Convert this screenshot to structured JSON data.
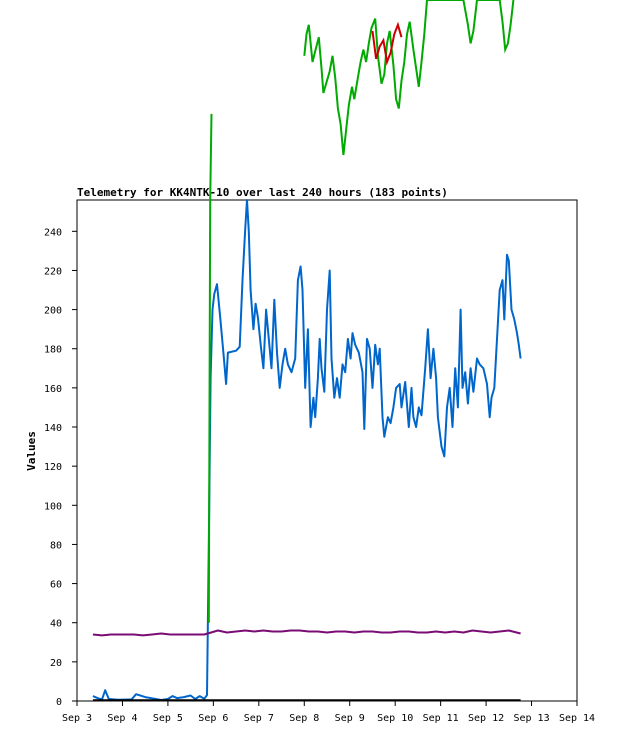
{
  "chart_data": {
    "type": "line",
    "title": "Telemetry for KK4NTK-10 over last 240 hours (183 points)",
    "xlabel": "",
    "ylabel": "Values",
    "ylim": [
      0,
      256
    ],
    "xlim": [
      0,
      11
    ],
    "x_ticks": [
      {
        "pos": 0,
        "label": "Sep 3"
      },
      {
        "pos": 1,
        "label": "Sep 4"
      },
      {
        "pos": 2,
        "label": "Sep 5"
      },
      {
        "pos": 3,
        "label": "Sep 6"
      },
      {
        "pos": 4,
        "label": "Sep 7"
      },
      {
        "pos": 5,
        "label": "Sep 8"
      },
      {
        "pos": 6,
        "label": "Sep 9"
      },
      {
        "pos": 7,
        "label": "Sep 10"
      },
      {
        "pos": 8,
        "label": "Sep 11"
      },
      {
        "pos": 9,
        "label": "Sep 12"
      },
      {
        "pos": 10,
        "label": "Sep 13"
      },
      {
        "pos": 11,
        "label": "Sep 14"
      }
    ],
    "y_ticks": [
      0,
      20,
      40,
      60,
      80,
      100,
      120,
      140,
      160,
      180,
      200,
      220,
      240
    ],
    "grid": false,
    "legend": "none",
    "series": [
      {
        "color": "#0066cc",
        "points": [
          [
            0.35,
            2.5
          ],
          [
            0.45,
            1.5
          ],
          [
            0.55,
            0.8
          ],
          [
            0.62,
            5.5
          ],
          [
            0.7,
            1
          ],
          [
            0.9,
            0.6
          ],
          [
            1.2,
            0.8
          ],
          [
            1.3,
            3.5
          ],
          [
            1.5,
            2
          ],
          [
            1.7,
            1.2
          ],
          [
            1.85,
            0.5
          ],
          [
            2,
            1
          ],
          [
            2.1,
            2.5
          ],
          [
            2.2,
            1.5
          ],
          [
            2.35,
            2
          ],
          [
            2.5,
            2.8
          ],
          [
            2.6,
            1
          ],
          [
            2.7,
            2.5
          ],
          [
            2.8,
            1.2
          ],
          [
            2.86,
            3
          ],
          [
            2.9,
            80
          ],
          [
            2.94,
            165
          ],
          [
            2.98,
            200
          ],
          [
            3.02,
            208
          ],
          [
            3.08,
            213
          ],
          [
            3.15,
            196
          ],
          [
            3.22,
            178
          ],
          [
            3.28,
            162
          ],
          [
            3.32,
            178
          ],
          [
            3.5,
            179
          ],
          [
            3.58,
            181
          ],
          [
            3.64,
            215
          ],
          [
            3.7,
            241
          ],
          [
            3.74,
            256
          ],
          [
            3.78,
            240
          ],
          [
            3.82,
            210
          ],
          [
            3.88,
            190
          ],
          [
            3.93,
            203
          ],
          [
            3.98,
            196
          ],
          [
            4.05,
            180
          ],
          [
            4.1,
            170
          ],
          [
            4.16,
            200
          ],
          [
            4.22,
            185
          ],
          [
            4.28,
            170
          ],
          [
            4.34,
            205
          ],
          [
            4.4,
            178
          ],
          [
            4.46,
            160
          ],
          [
            4.52,
            172
          ],
          [
            4.58,
            180
          ],
          [
            4.64,
            172
          ],
          [
            4.72,
            168
          ],
          [
            4.8,
            175
          ],
          [
            4.86,
            215
          ],
          [
            4.92,
            222
          ],
          [
            4.96,
            210
          ],
          [
            5.02,
            160
          ],
          [
            5.08,
            190
          ],
          [
            5.14,
            140
          ],
          [
            5.2,
            155
          ],
          [
            5.24,
            145
          ],
          [
            5.3,
            165
          ],
          [
            5.34,
            185
          ],
          [
            5.38,
            170
          ],
          [
            5.44,
            158
          ],
          [
            5.5,
            200
          ],
          [
            5.56,
            220
          ],
          [
            5.6,
            175
          ],
          [
            5.66,
            155
          ],
          [
            5.72,
            165
          ],
          [
            5.78,
            155
          ],
          [
            5.84,
            172
          ],
          [
            5.9,
            168
          ],
          [
            5.96,
            185
          ],
          [
            6.02,
            175
          ],
          [
            6.06,
            188
          ],
          [
            6.12,
            182
          ],
          [
            6.2,
            178
          ],
          [
            6.28,
            168
          ],
          [
            6.32,
            139
          ],
          [
            6.38,
            185
          ],
          [
            6.44,
            180
          ],
          [
            6.5,
            160
          ],
          [
            6.56,
            182
          ],
          [
            6.62,
            172
          ],
          [
            6.66,
            180
          ],
          [
            6.72,
            145
          ],
          [
            6.76,
            135
          ],
          [
            6.84,
            145
          ],
          [
            6.9,
            142
          ],
          [
            6.96,
            150
          ],
          [
            7.02,
            160
          ],
          [
            7.1,
            162
          ],
          [
            7.14,
            150
          ],
          [
            7.22,
            163
          ],
          [
            7.3,
            140
          ],
          [
            7.36,
            160
          ],
          [
            7.4,
            145
          ],
          [
            7.46,
            140
          ],
          [
            7.52,
            150
          ],
          [
            7.58,
            146
          ],
          [
            7.66,
            170
          ],
          [
            7.72,
            190
          ],
          [
            7.78,
            165
          ],
          [
            7.84,
            180
          ],
          [
            7.9,
            165
          ],
          [
            7.94,
            145
          ],
          [
            8.02,
            130
          ],
          [
            8.08,
            125
          ],
          [
            8.14,
            150
          ],
          [
            8.2,
            160
          ],
          [
            8.26,
            140
          ],
          [
            8.32,
            170
          ],
          [
            8.38,
            150
          ],
          [
            8.44,
            200
          ],
          [
            8.48,
            160
          ],
          [
            8.54,
            168
          ],
          [
            8.6,
            152
          ],
          [
            8.66,
            170
          ],
          [
            8.72,
            158
          ],
          [
            8.8,
            175
          ],
          [
            8.86,
            172
          ],
          [
            8.94,
            170
          ],
          [
            9.02,
            162
          ],
          [
            9.08,
            145
          ],
          [
            9.12,
            155
          ],
          [
            9.18,
            160
          ],
          [
            9.24,
            185
          ],
          [
            9.3,
            210
          ],
          [
            9.36,
            215
          ],
          [
            9.4,
            195
          ],
          [
            9.46,
            228
          ],
          [
            9.5,
            225
          ],
          [
            9.56,
            200
          ],
          [
            9.62,
            195
          ],
          [
            9.68,
            188
          ],
          [
            9.72,
            182
          ],
          [
            9.76,
            175
          ]
        ]
      },
      {
        "color": "#7a0d74",
        "points": [
          [
            0.35,
            34
          ],
          [
            0.55,
            33.5
          ],
          [
            0.75,
            34
          ],
          [
            1,
            34
          ],
          [
            1.25,
            34
          ],
          [
            1.45,
            33.5
          ],
          [
            1.65,
            34
          ],
          [
            1.85,
            34.5
          ],
          [
            2.05,
            34
          ],
          [
            2.3,
            34
          ],
          [
            2.55,
            34
          ],
          [
            2.8,
            34
          ],
          [
            2.95,
            35
          ],
          [
            3.1,
            36
          ],
          [
            3.3,
            35
          ],
          [
            3.5,
            35.5
          ],
          [
            3.7,
            36
          ],
          [
            3.9,
            35.5
          ],
          [
            4.1,
            36
          ],
          [
            4.3,
            35.5
          ],
          [
            4.5,
            35.5
          ],
          [
            4.7,
            36
          ],
          [
            4.9,
            36
          ],
          [
            5.1,
            35.5
          ],
          [
            5.3,
            35.5
          ],
          [
            5.5,
            35
          ],
          [
            5.7,
            35.5
          ],
          [
            5.9,
            35.5
          ],
          [
            6.1,
            35
          ],
          [
            6.3,
            35.5
          ],
          [
            6.5,
            35.5
          ],
          [
            6.7,
            35
          ],
          [
            6.9,
            35
          ],
          [
            7.1,
            35.5
          ],
          [
            7.3,
            35.5
          ],
          [
            7.5,
            35
          ],
          [
            7.7,
            35
          ],
          [
            7.9,
            35.5
          ],
          [
            8.1,
            35
          ],
          [
            8.3,
            35.5
          ],
          [
            8.5,
            35
          ],
          [
            8.7,
            36
          ],
          [
            8.9,
            35.5
          ],
          [
            9.1,
            35
          ],
          [
            9.3,
            35.5
          ],
          [
            9.5,
            36
          ],
          [
            9.76,
            34.5
          ]
        ]
      },
      {
        "color": "#000000",
        "points": [
          [
            0.35,
            0.4
          ],
          [
            2.9,
            0.4
          ],
          [
            3,
            0.4
          ],
          [
            5,
            0.4
          ],
          [
            7,
            0.4
          ],
          [
            9,
            0.4
          ],
          [
            9.76,
            0.4
          ]
        ]
      },
      {
        "color": "#00aa00",
        "points": [
          [
            2.9,
            40
          ],
          [
            2.93,
            256
          ],
          [
            2.96,
            300
          ]
        ]
      }
    ],
    "overflow_series": [
      {
        "color": "#00aa00",
        "points": [
          [
            5.0,
            26
          ],
          [
            5.05,
            12
          ],
          [
            5.1,
            6
          ],
          [
            5.18,
            30
          ],
          [
            5.25,
            22
          ],
          [
            5.32,
            14
          ],
          [
            5.38,
            34
          ],
          [
            5.42,
            50
          ],
          [
            5.48,
            44
          ],
          [
            5.56,
            36
          ],
          [
            5.62,
            26
          ],
          [
            5.68,
            40
          ],
          [
            5.74,
            60
          ],
          [
            5.8,
            70
          ],
          [
            5.86,
            90
          ],
          [
            5.92,
            74
          ],
          [
            5.98,
            58
          ],
          [
            6.05,
            46
          ],
          [
            6.1,
            54
          ],
          [
            6.18,
            40
          ],
          [
            6.24,
            30
          ],
          [
            6.3,
            22
          ],
          [
            6.36,
            30
          ],
          [
            6.42,
            18
          ],
          [
            6.48,
            8
          ],
          [
            6.56,
            2
          ],
          [
            6.62,
            26
          ],
          [
            6.7,
            44
          ],
          [
            6.76,
            38
          ],
          [
            6.82,
            18
          ],
          [
            6.88,
            10
          ],
          [
            6.96,
            32
          ],
          [
            7.02,
            54
          ],
          [
            7.08,
            60
          ],
          [
            7.14,
            42
          ],
          [
            7.2,
            30
          ],
          [
            7.26,
            12
          ],
          [
            7.32,
            4
          ],
          [
            7.4,
            22
          ],
          [
            7.46,
            34
          ],
          [
            7.52,
            46
          ],
          [
            7.58,
            30
          ],
          [
            7.64,
            12
          ],
          [
            7.7,
            -10
          ],
          [
            7.8,
            -10
          ],
          [
            8.5,
            -10
          ],
          [
            8.6,
            6
          ],
          [
            8.66,
            18
          ],
          [
            8.72,
            10
          ],
          [
            8.8,
            -10
          ],
          [
            9.3,
            -10
          ],
          [
            9.36,
            4
          ],
          [
            9.42,
            22
          ],
          [
            9.48,
            18
          ],
          [
            9.54,
            6
          ],
          [
            9.6,
            -10
          ]
        ]
      },
      {
        "color": "#cc0000",
        "points": [
          [
            6.5,
            10
          ],
          [
            6.58,
            28
          ],
          [
            6.66,
            20
          ],
          [
            6.74,
            16
          ],
          [
            6.82,
            30
          ],
          [
            6.9,
            24
          ],
          [
            6.98,
            12
          ],
          [
            7.06,
            6
          ],
          [
            7.14,
            14
          ]
        ]
      }
    ]
  }
}
